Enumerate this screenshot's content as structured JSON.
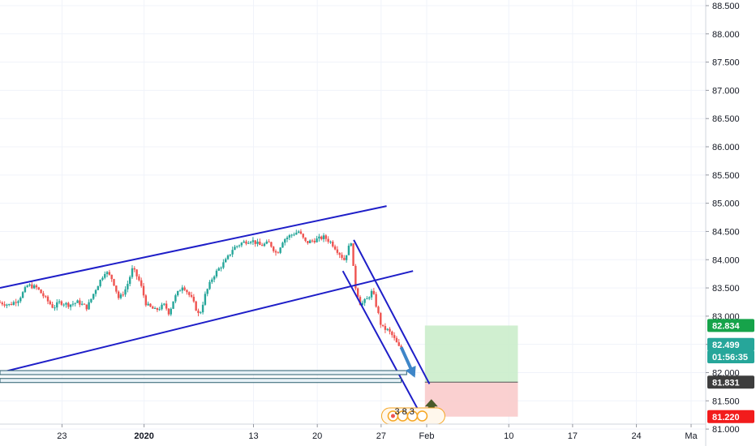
{
  "chart_data": {
    "type": "candlestick",
    "instrument": "",
    "y_axis": {
      "ticks": [
        "88.500",
        "88.000",
        "87.500",
        "87.000",
        "86.500",
        "86.000",
        "85.500",
        "85.000",
        "84.500",
        "84.000",
        "83.500",
        "83.000",
        "82.500",
        "82.000",
        "81.500",
        "81.000"
      ],
      "ylim": [
        80.7,
        88.6
      ]
    },
    "x_axis": {
      "ticks": [
        {
          "label": "23",
          "bold": false,
          "day": 23
        },
        {
          "label": "2020",
          "bold": true,
          "day": 32
        },
        {
          "label": "13",
          "bold": false,
          "day": 44
        },
        {
          "label": "20",
          "bold": false,
          "day": 51
        },
        {
          "label": "27",
          "bold": false,
          "day": 58
        },
        {
          "label": "Feb",
          "bold": false,
          "day": 63
        },
        {
          "label": "10",
          "bold": false,
          "day": 72
        },
        {
          "label": "17",
          "bold": false,
          "day": 79
        },
        {
          "label": "24",
          "bold": false,
          "day": 86
        },
        {
          "label": "Ma",
          "bold": false,
          "day": 92
        }
      ],
      "unit": "days (Dec 1 = day 1)",
      "xlim": [
        16.2,
        93.6
      ]
    },
    "price_path": [
      [
        16.2,
        83.25
      ],
      [
        17.5,
        83.2
      ],
      [
        18.5,
        83.3
      ],
      [
        19.5,
        83.55
      ],
      [
        20.5,
        83.5
      ],
      [
        21.5,
        83.3
      ],
      [
        22.3,
        83.15
      ],
      [
        23,
        83.25
      ],
      [
        24,
        83.2
      ],
      [
        25,
        83.25
      ],
      [
        26,
        83.15
      ],
      [
        27,
        83.5
      ],
      [
        28,
        83.8
      ],
      [
        28.8,
        83.65
      ],
      [
        29.5,
        83.3
      ],
      [
        30.3,
        83.5
      ],
      [
        31,
        83.85
      ],
      [
        31.8,
        83.6
      ],
      [
        32.5,
        83.2
      ],
      [
        33.5,
        83.1
      ],
      [
        34.5,
        83.2
      ],
      [
        35,
        83.05
      ],
      [
        35.5,
        83.3
      ],
      [
        36.5,
        83.55
      ],
      [
        37.5,
        83.3
      ],
      [
        38.3,
        83.0
      ],
      [
        39,
        83.4
      ],
      [
        39.8,
        83.7
      ],
      [
        40.5,
        83.85
      ],
      [
        41.3,
        84.0
      ],
      [
        42,
        84.2
      ],
      [
        43,
        84.3
      ],
      [
        44,
        84.35
      ],
      [
        45,
        84.25
      ],
      [
        46,
        84.3
      ],
      [
        46.8,
        84.1
      ],
      [
        47.5,
        84.35
      ],
      [
        48.5,
        84.45
      ],
      [
        49.2,
        84.5
      ],
      [
        50,
        84.3
      ],
      [
        51,
        84.35
      ],
      [
        52,
        84.4
      ],
      [
        52.8,
        84.3
      ],
      [
        53.5,
        84.15
      ],
      [
        54.2,
        84.0
      ],
      [
        55,
        84.35
      ],
      [
        55.3,
        83.6
      ],
      [
        56,
        83.2
      ],
      [
        56.7,
        83.3
      ],
      [
        57.3,
        83.45
      ],
      [
        58,
        83.0
      ],
      [
        58.3,
        82.8
      ],
      [
        59,
        82.75
      ],
      [
        59.5,
        82.65
      ],
      [
        60.2,
        82.45
      ]
    ],
    "drawings": {
      "channel_upper": {
        "x": [
          16.2,
          58.6
        ],
        "y": [
          83.5,
          84.95
        ]
      },
      "channel_lower": {
        "x": [
          16.2,
          61.5
        ],
        "y": [
          82.0,
          83.8
        ]
      },
      "down_channel_upper": {
        "x": [
          55,
          63.3
        ],
        "y": [
          84.35,
          81.8
        ]
      },
      "down_channel_lower": {
        "x": [
          53.8,
          62.2
        ],
        "y": [
          83.8,
          81.3
        ]
      },
      "support_band_upper": {
        "x": [
          16.2,
          60.8
        ],
        "y": [
          82.0,
          82.0
        ]
      },
      "support_band_lower": {
        "x": [
          16.2,
          60.2
        ],
        "y": [
          81.86,
          81.86
        ]
      },
      "arrow_down": {
        "x": [
          60.2,
          61.6
        ],
        "y": [
          82.45,
          81.95
        ]
      },
      "long_position": {
        "x": [
          62.8,
          73.0
        ],
        "target": 82.834,
        "entry": 81.831,
        "stop": 81.22
      }
    },
    "price_labels": [
      {
        "value": "82.834",
        "color": "#16a34a",
        "price": 82.834
      },
      {
        "value": "82.499",
        "color": "#26a69a",
        "price": 82.499
      },
      {
        "value": "01:56:35",
        "color": "#26a69a",
        "price": 82.28
      },
      {
        "value": "81.831",
        "color": "#3d3d3d",
        "price": 81.831
      },
      {
        "value": "81.220",
        "color": "#f21c1c",
        "price": 81.22
      }
    ],
    "colors": {
      "up": "#26a69a",
      "down": "#ef5350",
      "drawing": "#1e1ec8",
      "band": "#2b5e6e",
      "target_zone": "#c8ecc8",
      "stop_zone": "#f9c8c8",
      "arrow": "#3e86c8",
      "up_marker": "#4a5a2a"
    },
    "events": {
      "label": "3 8 3"
    }
  }
}
